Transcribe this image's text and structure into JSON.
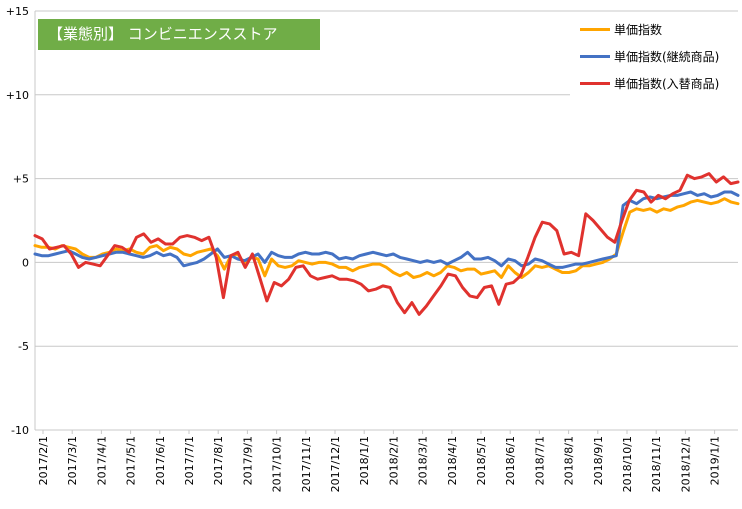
{
  "badge": "【業態別】 コンビニエンスストア",
  "chart_data": {
    "type": "line",
    "ylim": [
      -10,
      15
    ],
    "y_ticks": [
      {
        "value": 15,
        "label": "+15"
      },
      {
        "value": 10,
        "label": "+10"
      },
      {
        "value": 5,
        "label": "+5"
      },
      {
        "value": 0,
        "label": "0"
      },
      {
        "value": -5,
        "label": "-5"
      },
      {
        "value": -10,
        "label": "-10"
      }
    ],
    "x_tick_labels": [
      "2017/2/1",
      "2017/3/1",
      "2017/4/1",
      "2017/5/1",
      "2017/6/1",
      "2017/7/1",
      "2017/8/1",
      "2017/9/1",
      "2017/10/1",
      "2017/11/1",
      "2017/12/1",
      "2018/1/1",
      "2018/2/1",
      "2018/3/1",
      "2018/4/1",
      "2018/5/1",
      "2018/6/1",
      "2018/7/1",
      "2018/8/1",
      "2018/9/1",
      "2018/10/1",
      "2018/11/1",
      "2018/12/1",
      "2019/1/1"
    ],
    "grid": "horizontal",
    "legend_position": "top-right",
    "series": [
      {
        "name": "単価指数",
        "color": "#ffa500",
        "values": [
          1.0,
          0.9,
          0.9,
          0.8,
          1.0,
          0.9,
          0.8,
          0.5,
          0.3,
          0.3,
          0.5,
          0.6,
          0.8,
          0.7,
          0.8,
          0.6,
          0.5,
          0.9,
          1.0,
          0.7,
          0.9,
          0.8,
          0.5,
          0.4,
          0.6,
          0.7,
          0.8,
          0.4,
          -0.4,
          0.4,
          0.5,
          -0.1,
          0.3,
          0.2,
          -0.8,
          0.2,
          -0.2,
          -0.3,
          -0.2,
          0.1,
          0.0,
          -0.1,
          0.0,
          0.0,
          -0.1,
          -0.3,
          -0.3,
          -0.5,
          -0.3,
          -0.2,
          -0.1,
          -0.1,
          -0.3,
          -0.6,
          -0.8,
          -0.6,
          -0.9,
          -0.8,
          -0.6,
          -0.8,
          -0.6,
          -0.2,
          -0.3,
          -0.5,
          -0.4,
          -0.4,
          -0.7,
          -0.6,
          -0.5,
          -0.9,
          -0.2,
          -0.6,
          -0.9,
          -0.6,
          -0.2,
          -0.3,
          -0.2,
          -0.4,
          -0.6,
          -0.6,
          -0.5,
          -0.2,
          -0.2,
          -0.1,
          0.0,
          0.2,
          0.5,
          1.8,
          3.0,
          3.2,
          3.1,
          3.2,
          3.0,
          3.2,
          3.1,
          3.3,
          3.4,
          3.6,
          3.7,
          3.6,
          3.5,
          3.6,
          3.8,
          3.6,
          3.5
        ]
      },
      {
        "name": "単価指数(継続商品)",
        "color": "#4472c4",
        "values": [
          0.5,
          0.4,
          0.4,
          0.5,
          0.6,
          0.7,
          0.5,
          0.3,
          0.2,
          0.3,
          0.4,
          0.5,
          0.6,
          0.6,
          0.5,
          0.4,
          0.3,
          0.4,
          0.6,
          0.4,
          0.5,
          0.3,
          -0.2,
          -0.1,
          0.0,
          0.2,
          0.5,
          0.8,
          0.3,
          0.4,
          0.2,
          0.1,
          0.3,
          0.5,
          0.0,
          0.6,
          0.4,
          0.3,
          0.3,
          0.5,
          0.6,
          0.5,
          0.5,
          0.6,
          0.5,
          0.2,
          0.3,
          0.2,
          0.4,
          0.5,
          0.6,
          0.5,
          0.4,
          0.5,
          0.3,
          0.2,
          0.1,
          0.0,
          0.1,
          0.0,
          0.1,
          -0.1,
          0.1,
          0.3,
          0.6,
          0.2,
          0.2,
          0.3,
          0.1,
          -0.2,
          0.2,
          0.1,
          -0.2,
          -0.1,
          0.2,
          0.1,
          -0.1,
          -0.3,
          -0.3,
          -0.2,
          -0.1,
          -0.1,
          0.0,
          0.1,
          0.2,
          0.3,
          0.4,
          3.4,
          3.7,
          3.5,
          3.8,
          3.9,
          3.8,
          3.9,
          4.0,
          4.0,
          4.1,
          4.2,
          4.0,
          4.1,
          3.9,
          4.0,
          4.2,
          4.2,
          4.0
        ]
      },
      {
        "name": "単価指数(入替商品)",
        "color": "#e0322e",
        "values": [
          1.6,
          1.4,
          0.8,
          0.9,
          1.0,
          0.5,
          -0.3,
          0.0,
          -0.1,
          -0.2,
          0.4,
          1.0,
          0.9,
          0.6,
          1.5,
          1.7,
          1.2,
          1.4,
          1.1,
          1.1,
          1.5,
          1.6,
          1.5,
          1.3,
          1.5,
          0.3,
          -2.1,
          0.4,
          0.6,
          -0.3,
          0.5,
          -0.9,
          -2.3,
          -1.2,
          -1.4,
          -1.0,
          -0.3,
          -0.2,
          -0.8,
          -1.0,
          -0.9,
          -0.8,
          -1.0,
          -1.0,
          -1.1,
          -1.3,
          -1.7,
          -1.6,
          -1.4,
          -1.5,
          -2.4,
          -3.0,
          -2.4,
          -3.1,
          -2.6,
          -2.0,
          -1.4,
          -0.7,
          -0.8,
          -1.5,
          -2.0,
          -2.1,
          -1.5,
          -1.4,
          -2.5,
          -1.3,
          -1.2,
          -0.8,
          0.3,
          1.5,
          2.4,
          2.3,
          1.9,
          0.5,
          0.6,
          0.4,
          2.9,
          2.5,
          2.0,
          1.5,
          1.2,
          2.5,
          3.7,
          4.3,
          4.2,
          3.6,
          4.0,
          3.8,
          4.1,
          4.3,
          5.2,
          5.0,
          5.1,
          5.3,
          4.8,
          5.1,
          4.7,
          4.8
        ]
      }
    ]
  }
}
